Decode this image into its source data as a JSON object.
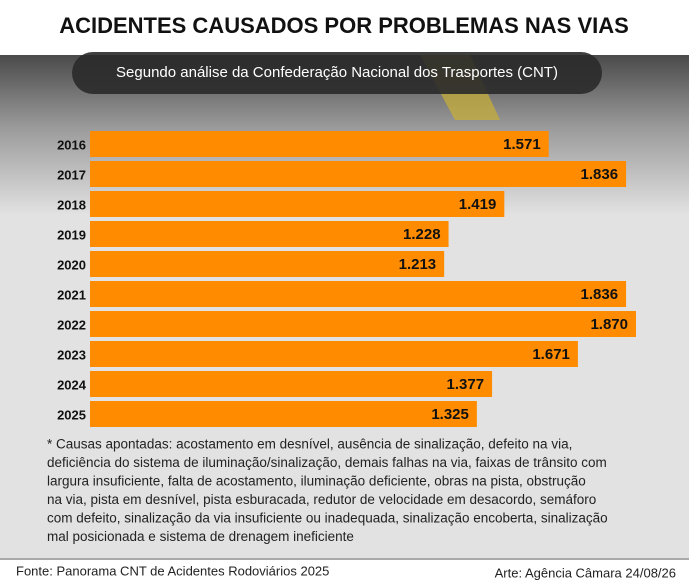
{
  "chart_data": {
    "type": "bar",
    "orientation": "horizontal",
    "title": "ACIDENTES CAUSADOS POR PROBLEMAS NAS VIAS",
    "subtitle": "Segundo análise da Confederação Nacional dos Trasportes (CNT)",
    "categories": [
      "2016",
      "2017",
      "2018",
      "2019",
      "2020",
      "2021",
      "2022",
      "2023",
      "2024",
      "2025"
    ],
    "values": [
      1571,
      1836,
      1419,
      1228,
      1213,
      1836,
      1870,
      1671,
      1377,
      1325
    ],
    "value_labels": [
      "1.571",
      "1.836",
      "1.419",
      "1.228",
      "1.213",
      "1.836",
      "1.870",
      "1.671",
      "1.377",
      "1.325"
    ],
    "color": "#ff8c00",
    "note": [
      "* Causas apontadas: acostamento em desnível, ausência de sinalização, defeito na via,",
      "deficiência do sistema de iluminação/sinalização, demais falhas na via, faixas de trânsito com",
      "largura insuficiente, falta de acostamento, iluminação deficiente, obras na pista, obstrução",
      "na via, pista em desnível, pista esburacada, redutor de velocidade em desacordo, semáforo",
      "com defeito, sinalização da via insuficiente ou inadequada, sinalização encoberta, sinalização",
      "mal posicionada e sistema de drenagem ineficiente"
    ],
    "source": "Fonte: Panorama CNT de Acidentes Rodoviários 2025",
    "credit": "Arte: Agência Câmara 24/08/26"
  }
}
